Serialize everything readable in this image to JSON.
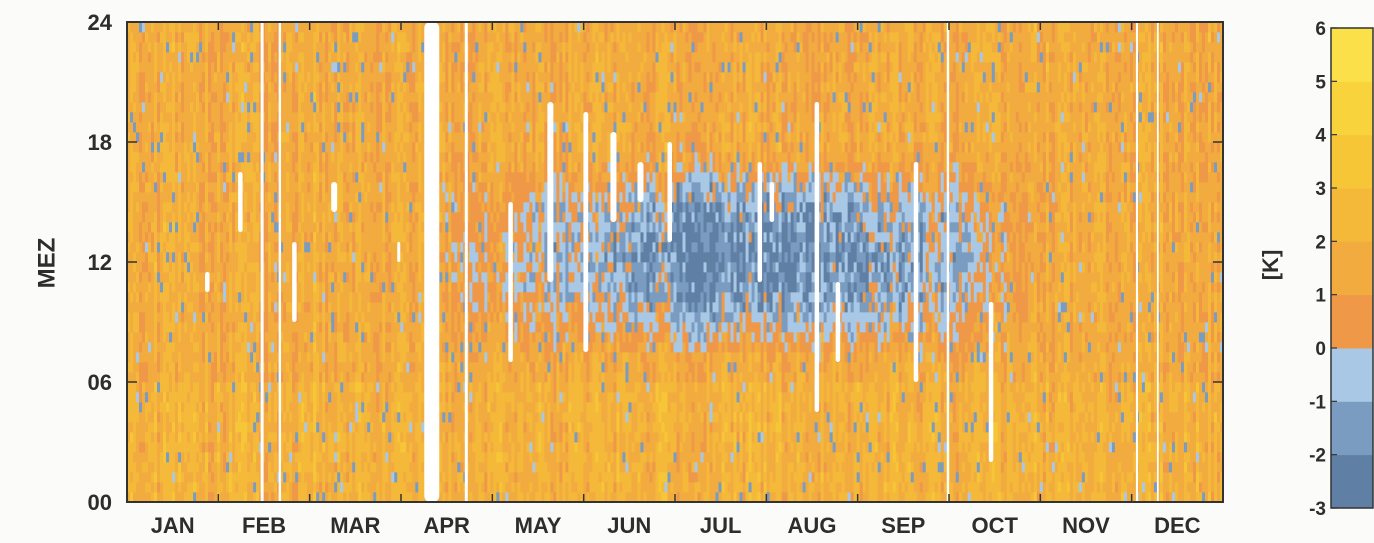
{
  "chart_data": {
    "type": "heatmap",
    "title": "",
    "xlabel": "",
    "ylabel": "MEZ",
    "x_categories": [
      "JAN",
      "FEB",
      "MAR",
      "APR",
      "MAY",
      "JUN",
      "JUL",
      "AUG",
      "SEP",
      "OCT",
      "NOV",
      "DEC"
    ],
    "y_ticks": [
      "00",
      "06",
      "12",
      "18",
      "24"
    ],
    "y_range_hours": [
      0,
      24
    ],
    "colorbar": {
      "label": "[K]",
      "range": [
        -3,
        6
      ],
      "ticks": [
        "6",
        "5",
        "4",
        "3",
        "2",
        "1",
        "0",
        "-1",
        "-2",
        "-3"
      ],
      "levels": [
        {
          "from": -3,
          "to": -2,
          "color": "#5f7fa4"
        },
        {
          "from": -2,
          "to": -1,
          "color": "#7a9cc0"
        },
        {
          "from": -1,
          "to": 0,
          "color": "#a8c8e6"
        },
        {
          "from": 0,
          "to": 1,
          "color": "#ee9848"
        },
        {
          "from": 1,
          "to": 2,
          "color": "#f2ab3e"
        },
        {
          "from": 2,
          "to": 3,
          "color": "#f5b93a"
        },
        {
          "from": 3,
          "to": 4,
          "color": "#f7c637"
        },
        {
          "from": 4,
          "to": 5,
          "color": "#f9d33c"
        },
        {
          "from": 5,
          "to": 6,
          "color": "#fbe04a"
        }
      ]
    },
    "pattern": "Mostly positive values (0 to 3 K) throughout; negative values (-3 to 0 K) concentrated between about 07 and 18 MEZ from April to October, strongest July-October; white gaps indicate missing data.",
    "missing_data_color": "#ffffff"
  }
}
